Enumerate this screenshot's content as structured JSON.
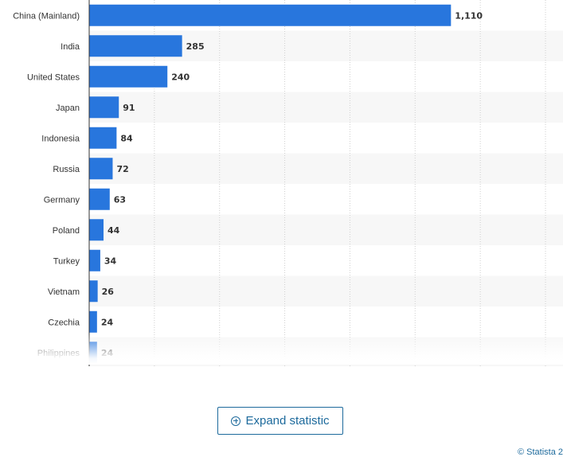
{
  "chart_data": {
    "type": "bar",
    "orientation": "horizontal",
    "categories": [
      "China (Mainland)",
      "India",
      "United States",
      "Japan",
      "Indonesia",
      "Russia",
      "Germany",
      "Poland",
      "Turkey",
      "Vietnam",
      "Czechia",
      "Philippines"
    ],
    "values": [
      1110,
      285,
      240,
      91,
      84,
      72,
      63,
      44,
      34,
      26,
      24,
      24
    ],
    "value_labels": [
      "1,110",
      "285",
      "240",
      "91",
      "84",
      "72",
      "63",
      "44",
      "34",
      "26",
      "24",
      "24"
    ],
    "xlim": [
      0,
      1400
    ],
    "grid": true,
    "bar_color": "#2876dd"
  },
  "expand_button": {
    "label": "Expand statistic",
    "icon": "plus-circle-icon"
  },
  "credit": "© Statista 2"
}
